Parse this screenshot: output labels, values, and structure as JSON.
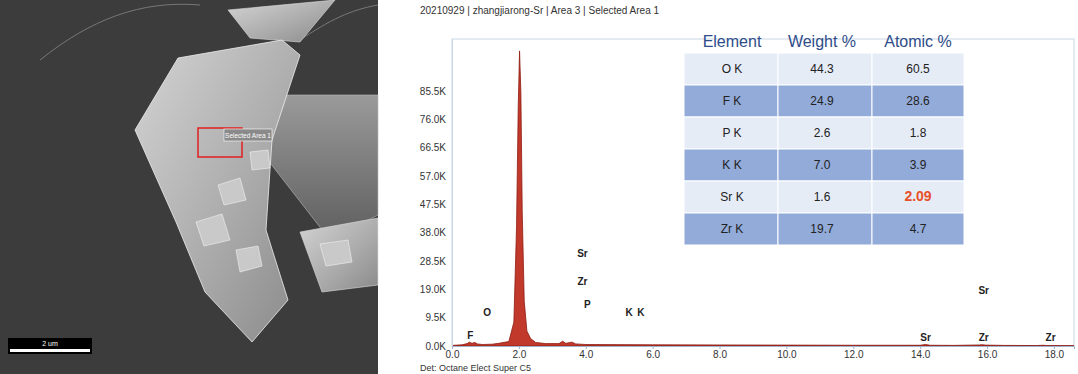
{
  "sem_image": {
    "scale_bar_label": "2 um",
    "selection_label": "Selected Area 1"
  },
  "chart_data": {
    "type": "area",
    "title": "20210929 | zhangjiarong-Sr | Area 3 | Selected Area 1",
    "footer": "Det: Octane Elect Super C5",
    "x": [
      0,
      0.3,
      0.45,
      0.52,
      0.6,
      0.68,
      0.76,
      0.9,
      1.2,
      1.4,
      1.7,
      1.85,
      1.93,
      1.98,
      2.02,
      2.06,
      2.1,
      2.16,
      2.24,
      2.35,
      2.5,
      2.8,
      3.2,
      3.31,
      3.4,
      3.59,
      3.7,
      4.0,
      6.0,
      8.0,
      10.0,
      12.0,
      14.0,
      14.16,
      14.3,
      15.0,
      15.77,
      15.84,
      15.95,
      16.5,
      17.5,
      17.67,
      17.8,
      18.6
    ],
    "values": [
      200,
      400,
      800,
      1300,
      900,
      1200,
      700,
      500,
      600,
      900,
      1500,
      8000,
      40000,
      80000,
      99000,
      85000,
      45000,
      15000,
      5000,
      2500,
      1200,
      800,
      800,
      1600,
      900,
      1300,
      700,
      500,
      400,
      350,
      300,
      250,
      250,
      500,
      250,
      200,
      350,
      450,
      300,
      200,
      150,
      250,
      150,
      100
    ],
    "color": "#c0392b",
    "xlim": [
      0,
      18.6
    ],
    "xticks": [
      {
        "value": 0,
        "label": "0.0"
      },
      {
        "value": 2,
        "label": "2.0"
      },
      {
        "value": 4,
        "label": "4.0"
      },
      {
        "value": 6,
        "label": "6.0"
      },
      {
        "value": 8,
        "label": "8.0"
      },
      {
        "value": 10,
        "label": "10.0"
      },
      {
        "value": 12,
        "label": "12.0"
      },
      {
        "value": 14,
        "label": "14.0"
      },
      {
        "value": 16,
        "label": "16.0"
      },
      {
        "value": 18,
        "label": "18.0"
      }
    ],
    "ylim": [
      0,
      103000
    ],
    "yticks": [
      {
        "value": 0,
        "label": "0.0K"
      },
      {
        "value": 9500,
        "label": "9.5K"
      },
      {
        "value": 19000,
        "label": "19.0K"
      },
      {
        "value": 28500,
        "label": "28.5K"
      },
      {
        "value": 38000,
        "label": "38.0K"
      },
      {
        "value": 47500,
        "label": "47.5K"
      },
      {
        "value": 57000,
        "label": "57.0K"
      },
      {
        "value": 66500,
        "label": "66.5K"
      },
      {
        "value": 76000,
        "label": "76.0K"
      },
      {
        "value": 85500,
        "label": "85.5K"
      }
    ],
    "grid": false,
    "annotations": [
      {
        "text": "O",
        "x": 1.05,
        "y": 11000
      },
      {
        "text": "F",
        "x": 0.55,
        "y": 3300
      },
      {
        "text": "Sr",
        "x": 3.9,
        "y": 30800
      },
      {
        "text": "Zr",
        "x": 3.9,
        "y": 21300
      },
      {
        "text": "P",
        "x": 4.05,
        "y": 13800
      },
      {
        "text": "K",
        "x": 5.3,
        "y": 11000
      },
      {
        "text": "K",
        "x": 5.65,
        "y": 11000
      },
      {
        "text": "Sr",
        "x": 14.16,
        "y": 2600
      },
      {
        "text": "Sr",
        "x": 15.9,
        "y": 18300
      },
      {
        "text": "Zr",
        "x": 15.9,
        "y": 2600
      },
      {
        "text": "Zr",
        "x": 17.9,
        "y": 2600
      }
    ],
    "table": {
      "header": [
        "Element",
        "Weight %",
        "Atomic %"
      ],
      "rows": [
        [
          "O K",
          "44.3",
          "60.5"
        ],
        [
          "F K",
          "24.9",
          "28.6"
        ],
        [
          "P K",
          "2.6",
          "1.8"
        ],
        [
          "K K",
          "7.0",
          "3.9"
        ],
        [
          "Sr K",
          "1.6",
          {
            "text": "2.09",
            "color": "#e8502a"
          }
        ],
        [
          "Zr K",
          "19.7",
          "4.7"
        ]
      ]
    }
  }
}
